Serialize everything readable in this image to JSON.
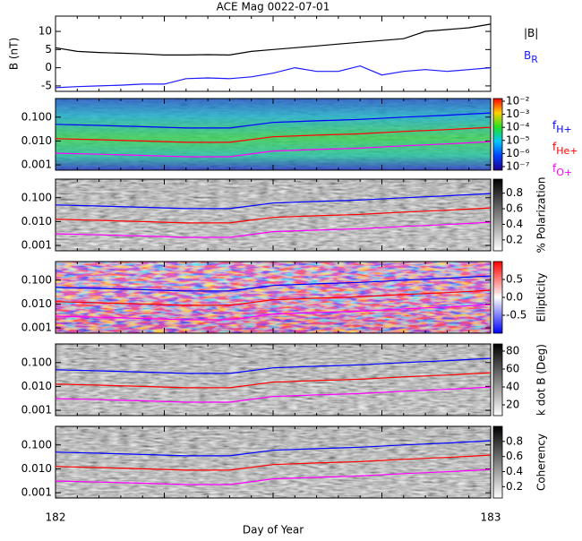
{
  "chart_data": [
    {
      "type": "line",
      "title": "ACE Mag 0022-07-01",
      "ylabel": "B (nT)",
      "x": [
        182,
        182.05,
        182.1,
        182.15,
        182.2,
        182.25,
        182.3,
        182.35,
        182.4,
        182.45,
        182.5,
        182.55,
        182.6,
        182.65,
        182.7,
        182.75,
        182.8,
        182.85,
        182.9,
        182.95,
        183
      ],
      "series": [
        {
          "name": "|B|",
          "color": "#000000",
          "values": [
            5.5,
            4.5,
            4.2,
            4.0,
            3.8,
            3.5,
            3.5,
            3.6,
            3.5,
            4.5,
            5.0,
            5.5,
            6.0,
            6.5,
            7.0,
            7.5,
            8.0,
            10.0,
            10.5,
            11.0,
            12.0
          ]
        },
        {
          "name": "B",
          "subscript": "R",
          "color": "#1a1aff",
          "values": [
            -5.5,
            -5.2,
            -5.0,
            -4.8,
            -4.5,
            -4.5,
            -3.0,
            -2.8,
            -3.0,
            -2.5,
            -1.5,
            0,
            -1,
            -1,
            0.5,
            -2,
            -1,
            -0.5,
            -1,
            -0.5,
            0
          ]
        }
      ],
      "xlim": [
        182,
        183
      ],
      "ylim": [
        -6.5,
        14.2
      ],
      "yticks": [
        -5,
        0,
        5,
        10
      ]
    },
    {
      "type": "spectrogram",
      "colormap": "rainbow",
      "clog": true,
      "clim": [
        5.3e-08,
        0.016
      ],
      "cticks": [
        {
          "value": 0.01,
          "label": "10⁻²"
        },
        {
          "value": 0.001,
          "label": "10⁻³"
        },
        {
          "value": 0.0001,
          "label": "10⁻⁴"
        },
        {
          "value": 1e-05,
          "label": "10⁻⁵"
        },
        {
          "value": 1e-06,
          "label": "10⁻⁶"
        },
        {
          "value": 1e-07,
          "label": "10⁻⁷"
        }
      ],
      "ylog": true,
      "xlim": [
        182,
        183
      ],
      "ylim": [
        0.0006,
        0.6
      ],
      "yticks": [
        {
          "value": 0.1,
          "label": "0.100"
        },
        {
          "value": 0.01,
          "label": "0.010"
        },
        {
          "value": 0.001,
          "label": "0.001"
        }
      ],
      "x": [
        182,
        182.1,
        182.2,
        182.3,
        182.4,
        182.5,
        182.6,
        182.7,
        182.8,
        182.9,
        183
      ],
      "series": [
        {
          "name": "f",
          "subscript": "H+",
          "color": "#0000ff",
          "values": [
            0.05,
            0.045,
            0.04,
            0.035,
            0.035,
            0.06,
            0.07,
            0.08,
            0.1,
            0.12,
            0.15
          ]
        },
        {
          "name": "f",
          "subscript": "He+",
          "color": "#ff0000",
          "values": [
            0.0125,
            0.0113,
            0.01,
            0.0088,
            0.0088,
            0.015,
            0.0175,
            0.02,
            0.025,
            0.03,
            0.0375
          ]
        },
        {
          "name": "f",
          "subscript": "O+",
          "color": "#ff00ff",
          "values": [
            0.0031,
            0.0028,
            0.0025,
            0.0022,
            0.0022,
            0.0038,
            0.0044,
            0.005,
            0.0063,
            0.0075,
            0.0094
          ]
        }
      ]
    },
    {
      "type": "spectrogram",
      "colormap": "gray",
      "colorbar_label": "% Polarization",
      "clim": [
        0.06,
        0.98
      ],
      "cticks": [
        0.2,
        0.4,
        0.6,
        0.8
      ],
      "ylog": true,
      "xlim": [
        182,
        183
      ],
      "ylim": [
        0.0006,
        0.6
      ],
      "yticks": [
        {
          "value": 0.1,
          "label": "0.100"
        },
        {
          "value": 0.01,
          "label": "0.010"
        },
        {
          "value": 0.001,
          "label": "0.001"
        }
      ],
      "x": [
        182,
        182.1,
        182.2,
        182.3,
        182.4,
        182.5,
        182.6,
        182.7,
        182.8,
        182.9,
        183
      ],
      "series": [
        {
          "color": "#0000ff",
          "values": [
            0.05,
            0.045,
            0.04,
            0.035,
            0.035,
            0.06,
            0.07,
            0.08,
            0.1,
            0.12,
            0.15
          ]
        },
        {
          "color": "#ff0000",
          "values": [
            0.0125,
            0.0113,
            0.01,
            0.0088,
            0.0088,
            0.015,
            0.0175,
            0.02,
            0.025,
            0.03,
            0.0375
          ]
        },
        {
          "color": "#ff00ff",
          "values": [
            0.0031,
            0.0028,
            0.0025,
            0.0022,
            0.0022,
            0.0038,
            0.0044,
            0.005,
            0.0063,
            0.0075,
            0.0094
          ]
        }
      ]
    },
    {
      "type": "spectrogram",
      "colormap": "bwr",
      "colorbar_label": "Ellipticity",
      "clim": [
        -1,
        1
      ],
      "cticks": [
        0.5,
        {
          "value": 0,
          "label": "0.0"
        },
        -0.5
      ],
      "ylog": true,
      "xlim": [
        182,
        183
      ],
      "ylim": [
        0.0006,
        0.6
      ],
      "yticks": [
        {
          "value": 0.1,
          "label": "0.100"
        },
        {
          "value": 0.01,
          "label": "0.010"
        },
        {
          "value": 0.001,
          "label": "0.001"
        }
      ],
      "x": [
        182,
        182.1,
        182.2,
        182.3,
        182.4,
        182.5,
        182.6,
        182.7,
        182.8,
        182.9,
        183
      ],
      "series": [
        {
          "color": "#0000ff",
          "values": [
            0.05,
            0.045,
            0.04,
            0.035,
            0.035,
            0.06,
            0.07,
            0.08,
            0.1,
            0.12,
            0.15
          ]
        },
        {
          "color": "#ff0000",
          "values": [
            0.0125,
            0.0113,
            0.01,
            0.0088,
            0.0088,
            0.015,
            0.0175,
            0.02,
            0.025,
            0.03,
            0.0375
          ]
        },
        {
          "color": "#ff00ff",
          "values": [
            0.0031,
            0.0028,
            0.0025,
            0.0022,
            0.0022,
            0.0038,
            0.0044,
            0.005,
            0.0063,
            0.0075,
            0.0094
          ]
        }
      ]
    },
    {
      "type": "spectrogram",
      "colormap": "gray",
      "colorbar_label": "k dot B (Deg)",
      "clim": [
        8,
        88
      ],
      "cticks": [
        20,
        40,
        60,
        80
      ],
      "ylog": true,
      "xlim": [
        182,
        183
      ],
      "ylim": [
        0.0006,
        0.6
      ],
      "yticks": [
        {
          "value": 0.1,
          "label": "0.100"
        },
        {
          "value": 0.01,
          "label": "0.010"
        },
        {
          "value": 0.001,
          "label": "0.001"
        }
      ],
      "x": [
        182,
        182.1,
        182.2,
        182.3,
        182.4,
        182.5,
        182.6,
        182.7,
        182.8,
        182.9,
        183
      ],
      "series": [
        {
          "color": "#0000ff",
          "values": [
            0.05,
            0.045,
            0.04,
            0.035,
            0.035,
            0.06,
            0.07,
            0.08,
            0.1,
            0.12,
            0.15
          ]
        },
        {
          "color": "#ff0000",
          "values": [
            0.0125,
            0.0113,
            0.01,
            0.0088,
            0.0088,
            0.015,
            0.0175,
            0.02,
            0.025,
            0.03,
            0.0375
          ]
        },
        {
          "color": "#ff00ff",
          "values": [
            0.0031,
            0.0028,
            0.0025,
            0.0022,
            0.0022,
            0.0038,
            0.0044,
            0.005,
            0.0063,
            0.0075,
            0.0094
          ]
        }
      ]
    },
    {
      "type": "spectrogram",
      "colormap": "gray",
      "colorbar_label": "Coherency",
      "clim": [
        0.05,
        1.0
      ],
      "cticks": [
        0.2,
        0.4,
        0.6,
        0.8
      ],
      "ylog": true,
      "xlim": [
        182,
        183
      ],
      "ylim": [
        0.0006,
        0.6
      ],
      "yticks": [
        {
          "value": 0.1,
          "label": "0.100"
        },
        {
          "value": 0.01,
          "label": "0.010"
        },
        {
          "value": 0.001,
          "label": "0.001"
        }
      ],
      "xticks": [
        182,
        183
      ],
      "xlabel": "Day of Year",
      "x": [
        182,
        182.1,
        182.2,
        182.3,
        182.4,
        182.5,
        182.6,
        182.7,
        182.8,
        182.9,
        183
      ],
      "series": [
        {
          "color": "#0000ff",
          "values": [
            0.05,
            0.045,
            0.04,
            0.035,
            0.035,
            0.06,
            0.07,
            0.08,
            0.1,
            0.12,
            0.15
          ]
        },
        {
          "color": "#ff0000",
          "values": [
            0.0125,
            0.0113,
            0.01,
            0.0088,
            0.0088,
            0.015,
            0.0175,
            0.02,
            0.025,
            0.03,
            0.0375
          ]
        },
        {
          "color": "#ff00ff",
          "values": [
            0.0031,
            0.0028,
            0.0025,
            0.0022,
            0.0022,
            0.0038,
            0.0044,
            0.005,
            0.0063,
            0.0075,
            0.0094
          ]
        }
      ]
    }
  ]
}
